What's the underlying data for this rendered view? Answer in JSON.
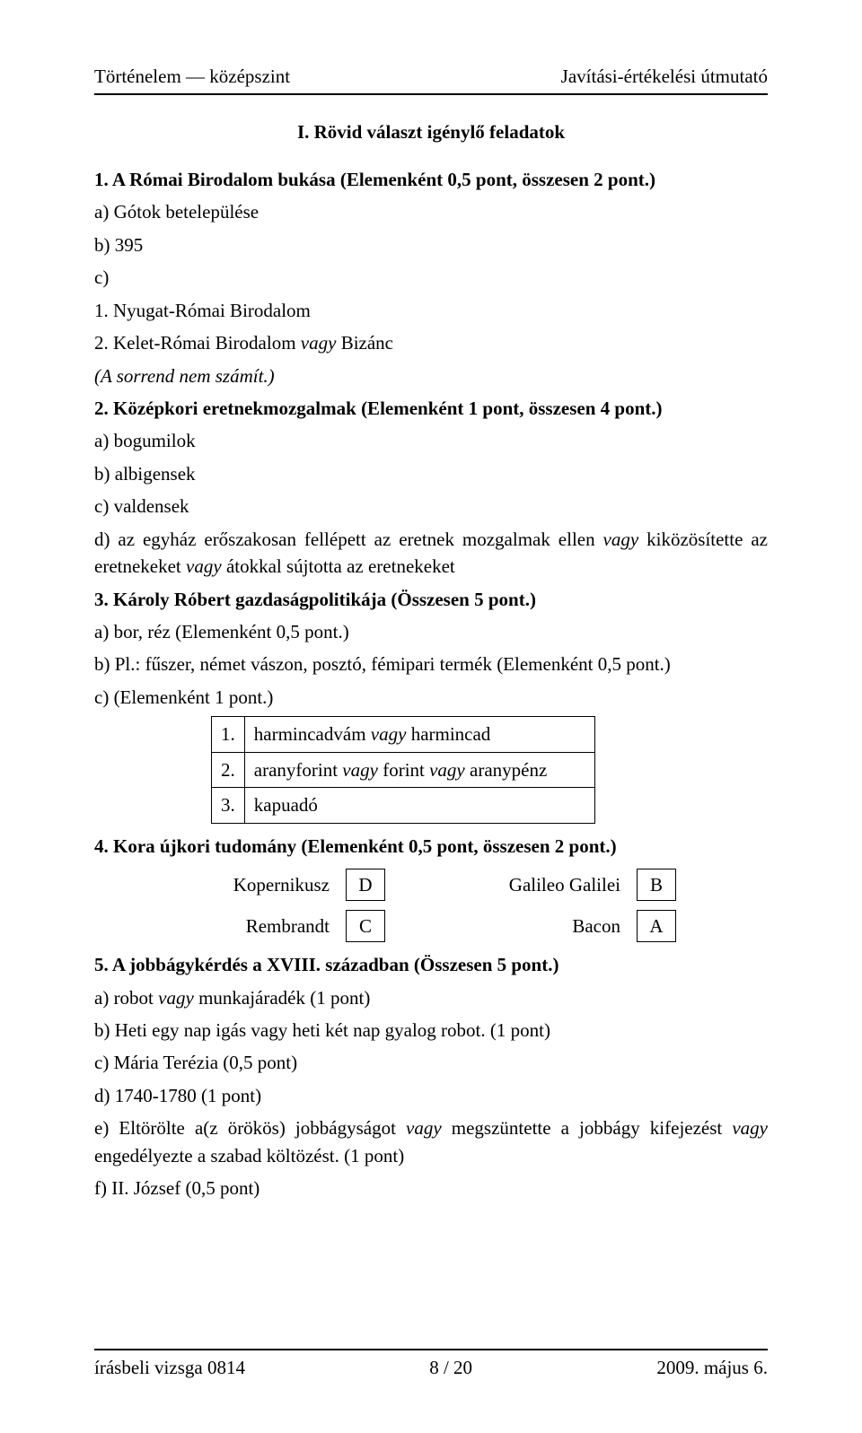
{
  "header": {
    "left": "Történelem — középszint",
    "right": "Javítási-értékelési útmutató"
  },
  "section_title": "I. Rövid választ igénylő feladatok",
  "q1": {
    "title": "1. A Római Birodalom bukása (Elemenként 0,5 pont, összesen 2 pont.)",
    "a": "a) Gótok betelepülése",
    "b": "b) 395",
    "c": "c)",
    "c1": "1. Nyugat-Római Birodalom",
    "c2_pre": "2. Kelet-Római Birodalom ",
    "c2_it": "vagy ",
    "c2_post": "Bizánc",
    "note": "(A sorrend nem számít.)"
  },
  "q2": {
    "title": "2. Középkori eretnekmozgalmak (Elemenként 1 pont, összesen 4 pont.)",
    "a": "a) bogumilok",
    "b": "b) albigensek",
    "c": "c) valdensek",
    "d_pre": "d) az egyház erőszakosan fellépett az eretnek mozgalmak ellen ",
    "d_it1": "vagy",
    "d_mid": " kiközösítette az eretnekeket ",
    "d_it2": "vagy",
    "d_post": " átokkal sújtotta az eretnekeket"
  },
  "q3": {
    "title": "3. Károly Róbert gazdaságpolitikája (Összesen 5 pont.)",
    "a": "a) bor, réz (Elemenként 0,5 pont.)",
    "b": "b) Pl.: fűszer, német vászon, posztó, fémipari termék (Elemenként 0,5 pont.)",
    "c": "c) (Elemenként 1 pont.)",
    "rows": [
      {
        "n": "1.",
        "t_pre": "harmincadvám ",
        "t_it": "vagy",
        "t_post": " harmincad"
      },
      {
        "n": "2.",
        "t_pre": "aranyforint ",
        "t_it": "vagy",
        "t_mid": " forint ",
        "t_it2": "vagy",
        "t_post": " aranypénz"
      },
      {
        "n": "3.",
        "t_pre": "kapuadó",
        "t_it": "",
        "t_post": ""
      }
    ]
  },
  "q4": {
    "title": "4. Kora újkori tudomány (Elemenként 0,5 pont, összesen 2 pont.)",
    "pairs": [
      {
        "l": "Kopernikusz",
        "lv": "D",
        "r": "Galileo Galilei",
        "rv": "B"
      },
      {
        "l": "Rembrandt",
        "lv": "C",
        "r": "Bacon",
        "rv": "A"
      }
    ]
  },
  "q5": {
    "title": "5. A jobbágykérdés a XVIII. században (Összesen 5 pont.)",
    "a_pre": "a)  robot ",
    "a_it": "vagy",
    "a_post": " munkajáradék (1 pont)",
    "b": "b)  Heti egy nap igás vagy heti két nap gyalog robot. (1 pont)",
    "c": "c)  Mária Terézia (0,5 pont)",
    "d": "d)  1740-1780 (1 pont)",
    "e_pre": "e)  Eltörölte a(z örökös) jobbágyságot ",
    "e_it1": "vagy",
    "e_mid": " megszüntette a jobbágy kifejezést ",
    "e_it2": "vagy",
    "e_post": " engedélyezte a szabad költözést. (1 pont)",
    "f": "f)  II. József (0,5 pont)"
  },
  "footer": {
    "left": "írásbeli vizsga 0814",
    "center": "8 / 20",
    "right": "2009. május 6."
  },
  "colors": {
    "text": "#000000",
    "bg": "#ffffff",
    "rule": "#000000"
  },
  "typography": {
    "family": "Times New Roman",
    "size_pt": 16,
    "title_weight": "bold"
  }
}
